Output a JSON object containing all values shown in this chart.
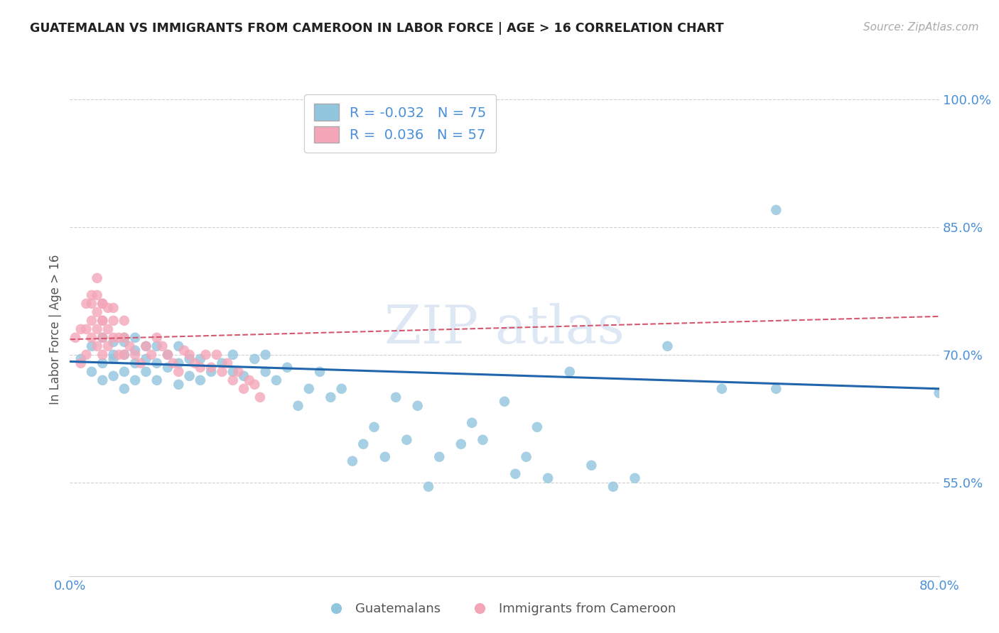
{
  "title": "GUATEMALAN VS IMMIGRANTS FROM CAMEROON IN LABOR FORCE | AGE > 16 CORRELATION CHART",
  "source": "Source: ZipAtlas.com",
  "ylabel": "In Labor Force | Age > 16",
  "x_min": 0.0,
  "x_max": 0.8,
  "y_min": 0.44,
  "y_max": 1.02,
  "y_ticks": [
    0.55,
    0.7,
    0.85,
    1.0
  ],
  "y_tick_labels": [
    "55.0%",
    "70.0%",
    "85.0%",
    "100.0%"
  ],
  "blue_color": "#92c5de",
  "pink_color": "#f4a6b8",
  "blue_line_color": "#2166ac",
  "pink_line_color": "#d6566e",
  "legend_blue_R": "-0.032",
  "legend_blue_N": "75",
  "legend_pink_R": "0.036",
  "legend_pink_N": "57",
  "blue_x": [
    0.01,
    0.02,
    0.02,
    0.03,
    0.03,
    0.03,
    0.04,
    0.04,
    0.04,
    0.04,
    0.05,
    0.05,
    0.05,
    0.05,
    0.05,
    0.06,
    0.06,
    0.06,
    0.06,
    0.07,
    0.07,
    0.07,
    0.08,
    0.08,
    0.08,
    0.09,
    0.09,
    0.1,
    0.1,
    0.1,
    0.11,
    0.11,
    0.12,
    0.12,
    0.13,
    0.14,
    0.15,
    0.15,
    0.16,
    0.17,
    0.18,
    0.18,
    0.19,
    0.2,
    0.21,
    0.22,
    0.23,
    0.24,
    0.25,
    0.26,
    0.27,
    0.28,
    0.29,
    0.3,
    0.31,
    0.32,
    0.33,
    0.34,
    0.36,
    0.37,
    0.38,
    0.4,
    0.41,
    0.42,
    0.43,
    0.44,
    0.46,
    0.48,
    0.5,
    0.52,
    0.55,
    0.6,
    0.65,
    0.65,
    0.8
  ],
  "blue_y": [
    0.695,
    0.68,
    0.71,
    0.67,
    0.69,
    0.72,
    0.675,
    0.695,
    0.715,
    0.7,
    0.66,
    0.68,
    0.7,
    0.715,
    0.72,
    0.67,
    0.69,
    0.705,
    0.72,
    0.68,
    0.695,
    0.71,
    0.67,
    0.69,
    0.71,
    0.685,
    0.7,
    0.665,
    0.69,
    0.71,
    0.675,
    0.695,
    0.67,
    0.695,
    0.68,
    0.69,
    0.68,
    0.7,
    0.675,
    0.695,
    0.68,
    0.7,
    0.67,
    0.685,
    0.64,
    0.66,
    0.68,
    0.65,
    0.66,
    0.575,
    0.595,
    0.615,
    0.58,
    0.65,
    0.6,
    0.64,
    0.545,
    0.58,
    0.595,
    0.62,
    0.6,
    0.645,
    0.56,
    0.58,
    0.615,
    0.555,
    0.68,
    0.57,
    0.545,
    0.555,
    0.71,
    0.66,
    0.87,
    0.66,
    0.655
  ],
  "pink_x": [
    0.005,
    0.01,
    0.01,
    0.015,
    0.015,
    0.015,
    0.02,
    0.02,
    0.02,
    0.02,
    0.025,
    0.025,
    0.025,
    0.025,
    0.025,
    0.03,
    0.03,
    0.03,
    0.03,
    0.03,
    0.03,
    0.035,
    0.035,
    0.035,
    0.04,
    0.04,
    0.04,
    0.045,
    0.045,
    0.05,
    0.05,
    0.05,
    0.055,
    0.06,
    0.065,
    0.07,
    0.075,
    0.08,
    0.085,
    0.09,
    0.095,
    0.1,
    0.105,
    0.11,
    0.115,
    0.12,
    0.125,
    0.13,
    0.135,
    0.14,
    0.145,
    0.15,
    0.155,
    0.16,
    0.165,
    0.17,
    0.175
  ],
  "pink_y": [
    0.72,
    0.69,
    0.73,
    0.7,
    0.73,
    0.76,
    0.72,
    0.74,
    0.76,
    0.77,
    0.71,
    0.73,
    0.75,
    0.77,
    0.79,
    0.7,
    0.72,
    0.74,
    0.76,
    0.74,
    0.76,
    0.71,
    0.73,
    0.755,
    0.72,
    0.74,
    0.755,
    0.7,
    0.72,
    0.7,
    0.72,
    0.74,
    0.71,
    0.7,
    0.69,
    0.71,
    0.7,
    0.72,
    0.71,
    0.7,
    0.69,
    0.68,
    0.705,
    0.7,
    0.69,
    0.685,
    0.7,
    0.685,
    0.7,
    0.68,
    0.69,
    0.67,
    0.68,
    0.66,
    0.67,
    0.665,
    0.65
  ],
  "blue_trend_x": [
    0.0,
    0.8
  ],
  "blue_trend_y": [
    0.692,
    0.66
  ],
  "pink_trend_x": [
    0.0,
    0.8
  ],
  "pink_trend_y": [
    0.718,
    0.745
  ]
}
